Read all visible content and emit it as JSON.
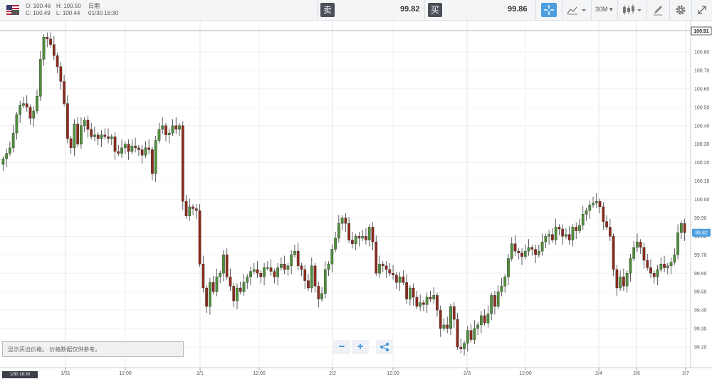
{
  "header": {
    "open_label": "O: 100.46",
    "high_label": "H: 100.50",
    "date_caption": "日期",
    "close_label": "C: 100.49",
    "low_label": "L: 100.44",
    "date_value": "01/30 16:30",
    "sell_label": "卖",
    "sell_price": "99.82",
    "buy_label": "买",
    "buy_price": "99.86",
    "timeframe": "30M"
  },
  "footer": {
    "notice": "显示买出价格。 价格数据仅供参考。",
    "zoom_out": "−",
    "zoom_in": "+",
    "cursor_date": "1/30 16:30"
  },
  "colors": {
    "up": "#4f8f3a",
    "down": "#8e2a1c",
    "accent": "#4b9fe1"
  },
  "chart_data": {
    "type": "candlestick",
    "y_ticks": [
      "99.20",
      "99.30",
      "99.40",
      "99.50",
      "99.60",
      "99.70",
      "99.80",
      "99.90",
      "100.00",
      "100.10",
      "100.20",
      "100.30",
      "100.40",
      "100.50",
      "100.60",
      "100.70",
      "100.80"
    ],
    "ylim": [
      99.13,
      101.0
    ],
    "x_tick_labels": [
      "1/31",
      "12:00",
      "2/1",
      "12:00",
      "2/2",
      "12:00",
      "2/3",
      "12:00",
      "2/4",
      "2/6",
      "2/7"
    ],
    "current_price": "99.82",
    "high_marker": "100.91",
    "closes": [
      100.22,
      100.25,
      100.28,
      100.36,
      100.46,
      100.51,
      100.52,
      100.5,
      100.44,
      100.48,
      100.56,
      100.76,
      100.88,
      100.87,
      100.84,
      100.78,
      100.72,
      100.64,
      100.52,
      100.33,
      100.28,
      100.41,
      100.3,
      100.4,
      100.43,
      100.38,
      100.34,
      100.35,
      100.33,
      100.35,
      100.34,
      100.33,
      100.34,
      100.26,
      100.25,
      100.28,
      100.3,
      100.26,
      100.29,
      100.28,
      100.27,
      100.24,
      100.28,
      100.27,
      100.14,
      100.32,
      100.38,
      100.4,
      100.35,
      100.36,
      100.4,
      100.38,
      100.4,
      99.99,
      99.91,
      99.96,
      99.95,
      99.94,
      99.65,
      99.52,
      99.42,
      99.55,
      99.5,
      99.58,
      99.6,
      99.7,
      99.58,
      99.53,
      99.45,
      99.52,
      99.5,
      99.55,
      99.58,
      99.61,
      99.62,
      99.6,
      99.58,
      99.63,
      99.63,
      99.61,
      99.58,
      99.63,
      99.65,
      99.62,
      99.64,
      99.7,
      99.72,
      99.64,
      99.62,
      99.56,
      99.52,
      99.64,
      99.53,
      99.46,
      99.49,
      99.62,
      99.65,
      99.73,
      99.79,
      99.87,
      99.9,
      99.87,
      99.78,
      99.76,
      99.8,
      99.79,
      99.8,
      99.78,
      99.85,
      99.77,
      99.6,
      99.65,
      99.64,
      99.62,
      99.6,
      99.59,
      99.55,
      99.58,
      99.55,
      99.46,
      99.52,
      99.47,
      99.42,
      99.44,
      99.43,
      99.47,
      99.46,
      99.48,
      99.4,
      99.3,
      99.32,
      99.3,
      99.42,
      99.35,
      99.2,
      99.19,
      99.22,
      99.29,
      99.24,
      99.3,
      99.32,
      99.37,
      99.33,
      99.38,
      99.48,
      99.42,
      99.5,
      99.53,
      99.58,
      99.68,
      99.76,
      99.72,
      99.71,
      99.69,
      99.72,
      99.74,
      99.73,
      99.7,
      99.72,
      99.77,
      99.8,
      99.81,
      99.78,
      99.85,
      99.84,
      99.8,
      99.81,
      99.78,
      99.85,
      99.83,
      99.86,
      99.92,
      99.94,
      99.97,
      99.98,
      99.99,
      99.96,
      99.88,
      99.85,
      99.8,
      99.62,
      99.52,
      99.58,
      99.53,
      99.6,
      99.68,
      99.74,
      99.77,
      99.74,
      99.67,
      99.63,
      99.6,
      99.58,
      99.62,
      99.65,
      99.63,
      99.64,
      99.66,
      99.7,
      99.82,
      99.87,
      99.82
    ]
  }
}
